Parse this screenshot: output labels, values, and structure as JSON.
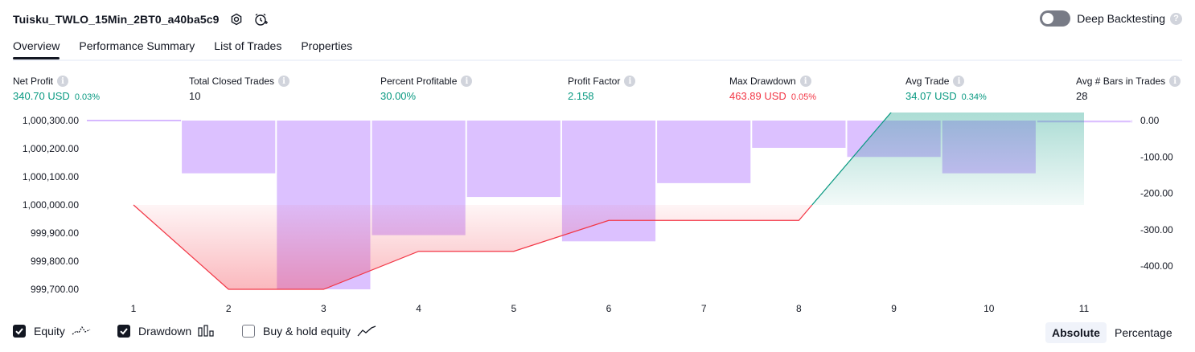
{
  "header": {
    "strategy_title": "Tuisku_TWLO_15Min_2BT0_a40ba5c9",
    "deep_backtesting_label": "Deep Backtesting",
    "deep_backtesting_enabled": false
  },
  "tabs": [
    {
      "label": "Overview",
      "active": true
    },
    {
      "label": "Performance Summary",
      "active": false
    },
    {
      "label": "List of Trades",
      "active": false
    },
    {
      "label": "Properties",
      "active": false
    }
  ],
  "metrics": {
    "net_profit": {
      "label": "Net Profit",
      "value": "340.70 USD",
      "pct": "0.03%"
    },
    "total_closed_trades": {
      "label": "Total Closed Trades",
      "value": "10"
    },
    "percent_profitable": {
      "label": "Percent Profitable",
      "value": "30.00%"
    },
    "profit_factor": {
      "label": "Profit Factor",
      "value": "2.158"
    },
    "max_drawdown": {
      "label": "Max Drawdown",
      "value": "463.89 USD",
      "pct": "0.05%"
    },
    "avg_trade": {
      "label": "Avg Trade",
      "value": "34.07 USD",
      "pct": "0.34%"
    },
    "avg_bars": {
      "label": "Avg # Bars in Trades",
      "value": "28"
    }
  },
  "chart_data": {
    "type": "area",
    "x": [
      1,
      2,
      3,
      4,
      5,
      6,
      7,
      8,
      9,
      10,
      11
    ],
    "x_tick_labels": [
      "1",
      "2",
      "3",
      "4",
      "5",
      "6",
      "7",
      "8",
      "9",
      "10",
      "11"
    ],
    "series": [
      {
        "name": "Equity",
        "axis": "left",
        "values": [
          1000000.0,
          999700.0,
          999700.0,
          999835.0,
          999835.0,
          999945.0,
          999945.0,
          999945.0,
          1000340.7,
          1000340.7,
          1000340.7
        ]
      },
      {
        "name": "Drawdown",
        "axis": "right",
        "type": "bar",
        "values": [
          0,
          -145,
          -463.89,
          -315,
          -210,
          -332,
          -172,
          -75,
          -100,
          -145,
          -5
        ]
      }
    ],
    "y_left_ticks": [
      "1,000,300.00",
      "1,000,200.00",
      "1,000,100.00",
      "1,000,000.00",
      "999,900.00",
      "999,800.00",
      "999,700.00"
    ],
    "y_left_range": [
      999700,
      1000300
    ],
    "y_right_ticks": [
      "0.00",
      "-100.00",
      "-200.00",
      "-300.00",
      "-400.00"
    ],
    "y_right_range": [
      -463.89,
      0
    ],
    "colors": {
      "drawdown": "#c9a0ff",
      "equity_positive": "#089981",
      "equity_negative": "#f23645"
    }
  },
  "legend": {
    "equity": {
      "label": "Equity",
      "checked": true
    },
    "drawdown": {
      "label": "Drawdown",
      "checked": true
    },
    "buy_hold": {
      "label": "Buy & hold equity",
      "checked": false
    }
  },
  "modes": {
    "absolute": {
      "label": "Absolute",
      "active": true
    },
    "percentage": {
      "label": "Percentage",
      "active": false
    }
  }
}
